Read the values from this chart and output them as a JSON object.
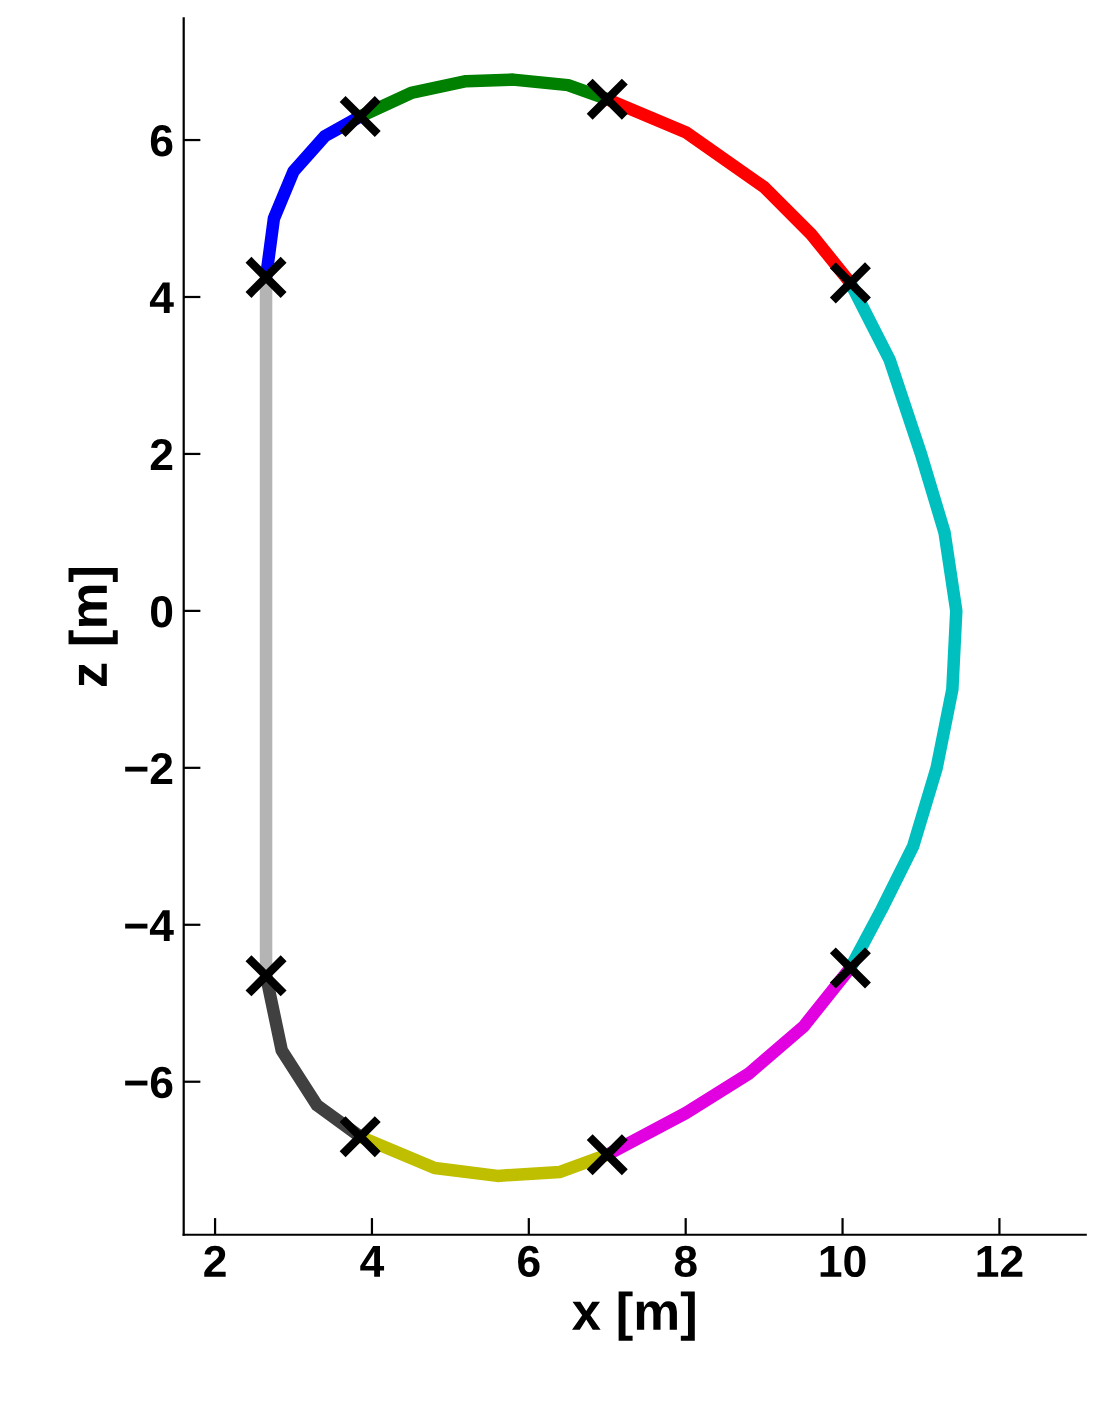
{
  "chart_data": {
    "type": "line",
    "xlabel": "x [m]",
    "ylabel": "z [m]",
    "xlim": [
      1.6,
      13.1
    ],
    "ylim": [
      -7.95,
      7.55
    ],
    "xticks": [
      2,
      4,
      6,
      8,
      10,
      12
    ],
    "yticks": [
      {
        "value": -6,
        "label": "−6"
      },
      {
        "value": -4,
        "label": "−4"
      },
      {
        "value": -2,
        "label": "−2"
      },
      0,
      2,
      4,
      6
    ],
    "grid": false,
    "legend": false,
    "marker": "none",
    "line_style": "solid",
    "series": [
      {
        "color": "#0000ff",
        "x": [
          2.65,
          2.75,
          3.0,
          3.4,
          3.85
        ],
        "values": [
          4.25,
          5.0,
          5.6,
          6.05,
          6.3
        ]
      },
      {
        "color": "#008000",
        "x": [
          3.85,
          4.5,
          5.2,
          5.8,
          6.5,
          7.0
        ],
        "values": [
          6.3,
          6.6,
          6.75,
          6.77,
          6.7,
          6.52
        ]
      },
      {
        "color": "#ff0000",
        "x": [
          7.0,
          8.0,
          9.0,
          9.6,
          10.1
        ],
        "values": [
          6.52,
          6.1,
          5.4,
          4.8,
          4.18
        ]
      },
      {
        "color": "#00bfbf",
        "x": [
          10.1,
          10.6,
          11.0,
          11.3,
          11.45,
          11.4,
          11.2,
          10.9,
          10.5,
          10.1
        ],
        "values": [
          4.18,
          3.2,
          2.0,
          1.0,
          0,
          -1.0,
          -2.0,
          -3.0,
          -3.8,
          -4.55
        ]
      },
      {
        "color": "#e000e0",
        "x": [
          10.1,
          9.5,
          8.8,
          8.0,
          7.0
        ],
        "values": [
          -4.55,
          -5.3,
          -5.9,
          -6.4,
          -6.93
        ]
      },
      {
        "color": "#bfbf00",
        "x": [
          7.0,
          6.4,
          5.6,
          4.8,
          3.85
        ],
        "values": [
          -6.93,
          -7.15,
          -7.2,
          -7.1,
          -6.7
        ]
      },
      {
        "color": "#404040",
        "x": [
          3.85,
          3.3,
          2.85,
          2.65
        ],
        "values": [
          -6.7,
          -6.3,
          -5.6,
          -4.65
        ]
      },
      {
        "color": "#b4b4b4",
        "x": [
          2.65,
          2.65
        ],
        "values": [
          -4.65,
          4.25
        ]
      },
      {
        "type": "scatter",
        "marker": "cross",
        "color": "#000000",
        "x": [
          2.65,
          3.85,
          7.0,
          10.1,
          10.1,
          7.0,
          3.85,
          2.65
        ],
        "values": [
          4.25,
          6.3,
          6.52,
          4.18,
          -4.55,
          -6.93,
          -6.7,
          -4.65
        ]
      }
    ]
  }
}
